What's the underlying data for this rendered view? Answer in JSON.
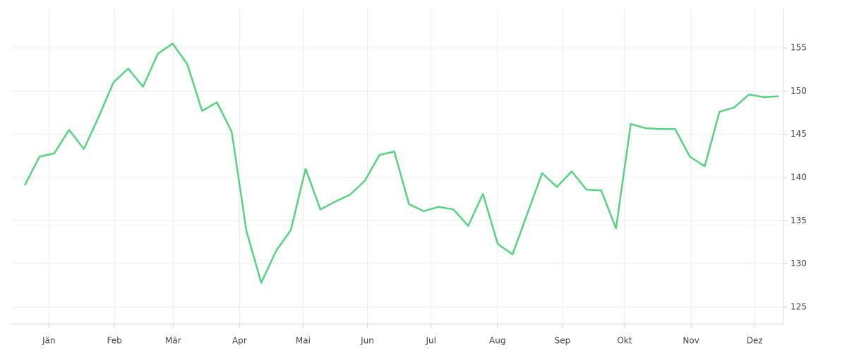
{
  "chart_data": {
    "type": "line",
    "x": [
      0,
      1,
      2,
      3,
      4,
      5,
      6,
      7,
      8,
      9,
      10,
      11,
      12,
      13,
      14,
      15,
      16,
      17,
      18,
      19,
      20,
      21,
      22,
      23,
      24,
      25,
      26,
      27,
      28,
      29,
      30,
      31,
      32,
      33,
      34,
      35,
      36,
      37,
      38,
      39,
      40,
      41,
      42,
      43,
      44,
      45,
      46,
      47,
      48,
      49,
      50,
      51
    ],
    "series": [
      {
        "color": "#55d47f",
        "values": [
          139.1,
          142.4,
          142.8,
          145.5,
          143.3,
          147.0,
          151.0,
          152.6,
          150.5,
          154.3,
          155.5,
          153.1,
          147.7,
          148.7,
          145.3,
          133.8,
          127.8,
          131.5,
          133.9,
          141.0,
          136.3,
          137.2,
          138.0,
          139.6,
          142.6,
          143.0,
          136.9,
          136.1,
          136.6,
          136.3,
          134.4,
          138.1,
          132.3,
          131.1,
          135.8,
          140.5,
          138.9,
          140.7,
          138.6,
          138.5,
          134.1,
          146.2,
          145.7,
          145.6,
          145.6,
          142.4,
          141.3,
          147.6,
          148.1,
          149.6,
          149.3,
          149.4
        ]
      }
    ],
    "xlim": [
      -0.91,
      51.33
    ],
    "xticks": [
      {
        "value": 1.63,
        "label": "Jän"
      },
      {
        "value": 6.07,
        "label": "Feb"
      },
      {
        "value": 10.04,
        "label": "Mär"
      },
      {
        "value": 14.53,
        "label": "Apr"
      },
      {
        "value": 18.83,
        "label": "Mai"
      },
      {
        "value": 23.18,
        "label": "Jun"
      },
      {
        "value": 27.49,
        "label": "Jul"
      },
      {
        "value": 31.98,
        "label": "Aug"
      },
      {
        "value": 36.38,
        "label": "Sep"
      },
      {
        "value": 40.58,
        "label": "Okt"
      },
      {
        "value": 45.08,
        "label": "Nov"
      },
      {
        "value": 49.38,
        "label": "Dez"
      }
    ],
    "ylim": [
      123.04,
      159.56
    ],
    "yticks": [
      125,
      130,
      135,
      140,
      145,
      150,
      155
    ],
    "grid": true
  }
}
